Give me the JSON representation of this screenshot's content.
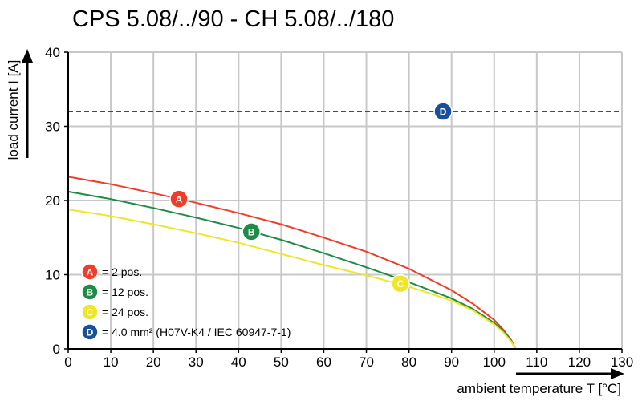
{
  "chart_data": {
    "type": "line",
    "title": "CPS 5.08/../90 - CH 5.08/../180",
    "xlabel": "ambient temperature T [°C]",
    "ylabel": "load current I [A]",
    "xlim": [
      0,
      130
    ],
    "ylim": [
      0,
      40
    ],
    "xticks": [
      0,
      10,
      20,
      30,
      40,
      50,
      60,
      70,
      80,
      90,
      100,
      110,
      120,
      130
    ],
    "yticks": [
      0,
      10,
      20,
      30,
      40
    ],
    "grid": true,
    "legend_position": "bottom-left",
    "series": [
      {
        "name": "A",
        "legend": "= 2 pos.",
        "color": "#f03c28",
        "marker_at": [
          26,
          20.2
        ],
        "x": [
          0,
          10,
          20,
          30,
          40,
          50,
          60,
          70,
          80,
          90,
          95,
          100,
          102,
          104,
          105
        ],
        "y": [
          23.2,
          22.2,
          21.0,
          19.7,
          18.3,
          16.8,
          15.0,
          13.1,
          10.8,
          7.9,
          6.1,
          3.9,
          2.7,
          1.2,
          0
        ]
      },
      {
        "name": "B",
        "legend": "= 12 pos.",
        "color": "#1e8c46",
        "marker_at": [
          43,
          15.8
        ],
        "x": [
          0,
          10,
          20,
          30,
          40,
          50,
          60,
          70,
          80,
          90,
          95,
          100,
          102,
          104,
          105
        ],
        "y": [
          21.2,
          20.2,
          19.0,
          17.7,
          16.3,
          14.7,
          12.9,
          11.0,
          9.0,
          6.8,
          5.4,
          3.5,
          2.5,
          1.1,
          0
        ]
      },
      {
        "name": "C",
        "legend": "= 24 pos.",
        "color": "#f0e628",
        "marker_at": [
          78,
          8.8
        ],
        "x": [
          0,
          10,
          20,
          30,
          40,
          50,
          60,
          70,
          80,
          90,
          95,
          100,
          102,
          104,
          105
        ],
        "y": [
          18.8,
          17.9,
          16.8,
          15.6,
          14.3,
          12.8,
          11.3,
          9.9,
          8.4,
          6.5,
          5.2,
          3.3,
          2.3,
          1.0,
          0
        ]
      },
      {
        "name": "D",
        "legend": "= 4.0 mm² (H07V-K4 / IEC 60947-7-1)",
        "color": "#1a4f9c",
        "dashed": true,
        "marker_at": [
          88,
          32
        ],
        "x": [
          0,
          130
        ],
        "y": [
          32,
          32
        ]
      }
    ]
  }
}
